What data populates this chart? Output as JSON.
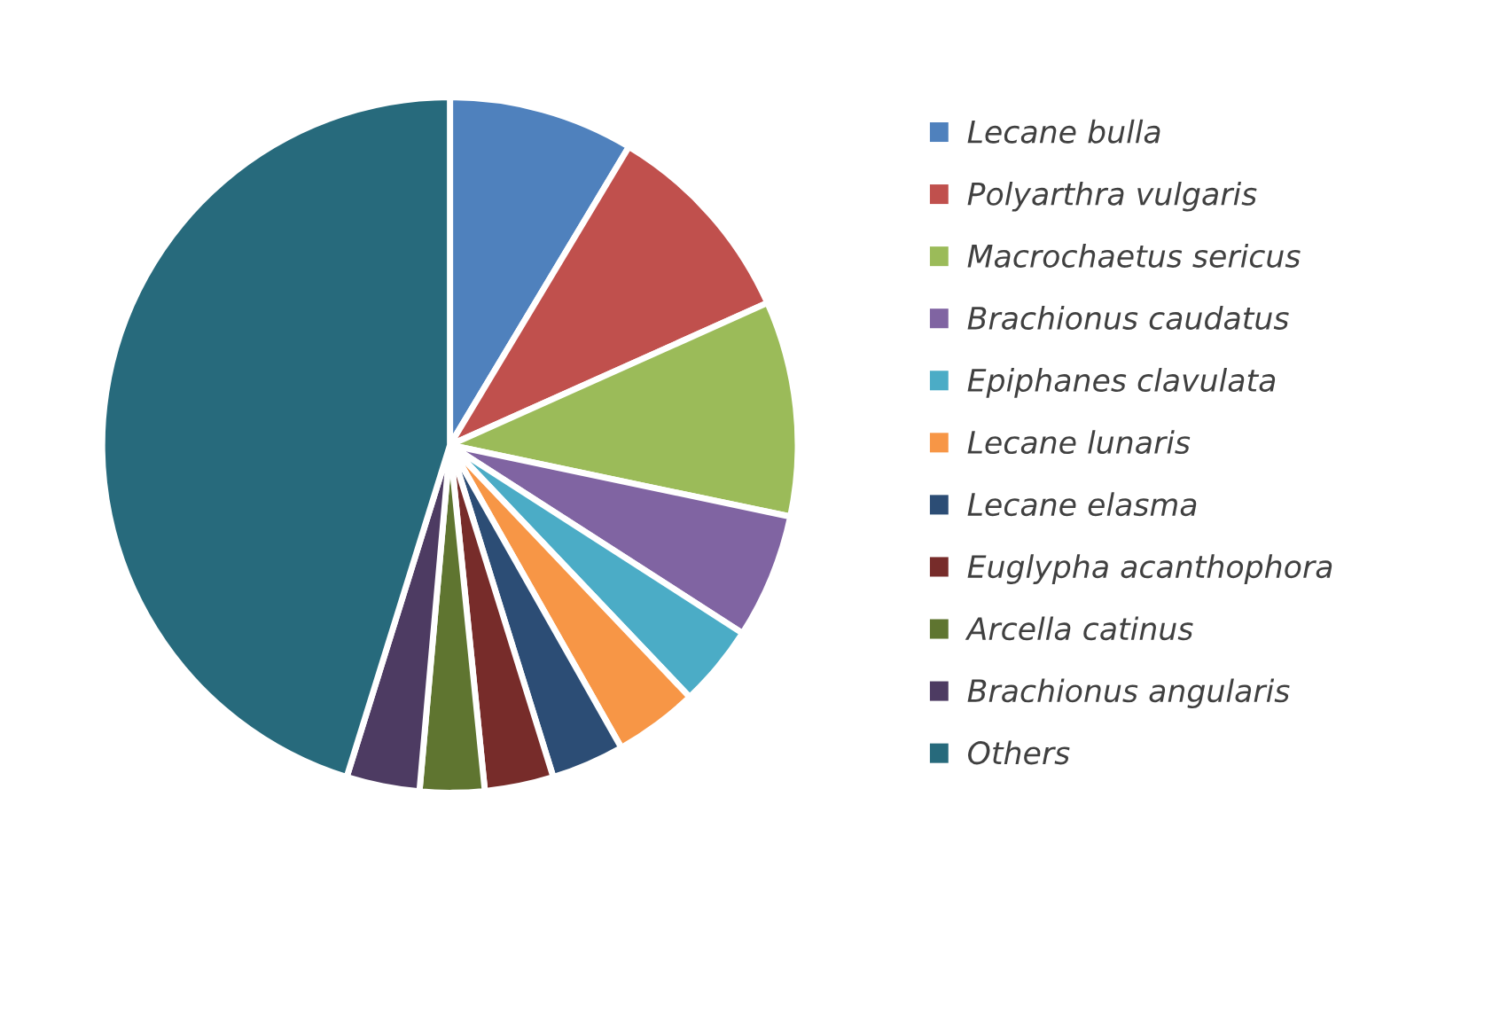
{
  "chart_data": {
    "type": "pie",
    "categories": [
      "Lecane bulla",
      "Polyarthra vulgaris",
      "Macrochaetus sericus",
      "Brachionus caudatus",
      "Epiphanes clavulata",
      "Lecane lunaris",
      "Lecane elasma",
      "Euglypha acanthophora",
      "Arcella catinus",
      "Brachionus angularis",
      "Others"
    ],
    "values": [
      8.6,
      9.7,
      10.0,
      5.8,
      3.8,
      3.9,
      3.4,
      3.2,
      3.0,
      3.4,
      45.2
    ],
    "colors": [
      "#4f81bd",
      "#c0504d",
      "#9bbb59",
      "#8064a2",
      "#4bacc6",
      "#f79646",
      "#2c4d75",
      "#772c2a",
      "#5f7530",
      "#4d3b62",
      "#276a7c"
    ],
    "legend": "right"
  }
}
